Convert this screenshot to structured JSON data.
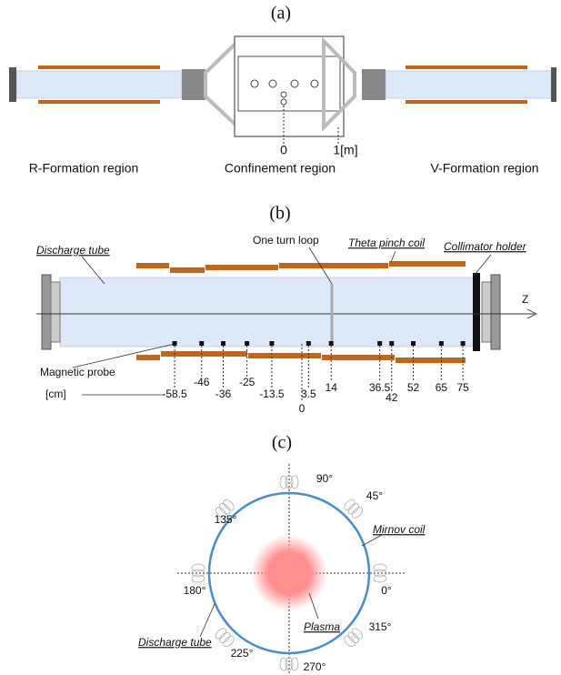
{
  "panel_a": {
    "label": "(a)",
    "scale_zero": "0",
    "scale_one": "1[m]",
    "regions": [
      "R-Formation region",
      "Confinement region",
      "V-Formation region"
    ]
  },
  "panel_b": {
    "label": "(b)",
    "discharge_tube": "Discharge tube",
    "one_turn_loop": "One turn loop",
    "theta_pinch_coil": "Theta pinch coil",
    "collimator_holder": "Collimator holder",
    "axis": "Z",
    "magnetic_probe": "Magnetic probe",
    "unit": "[cm]",
    "origin": "0",
    "probe_positions": [
      -58.5,
      -46,
      -36,
      -25,
      -13.5,
      3.5,
      14,
      36.5,
      42,
      52,
      65,
      75
    ]
  },
  "panel_c": {
    "label": "(c)",
    "mirnov_coil": "Mirnov coil",
    "plasma": "Plasma",
    "discharge_tube": "Discharge tube",
    "angles": [
      "0°",
      "45°",
      "90°",
      "135°",
      "180°",
      "225°",
      "270°",
      "315°"
    ]
  }
}
